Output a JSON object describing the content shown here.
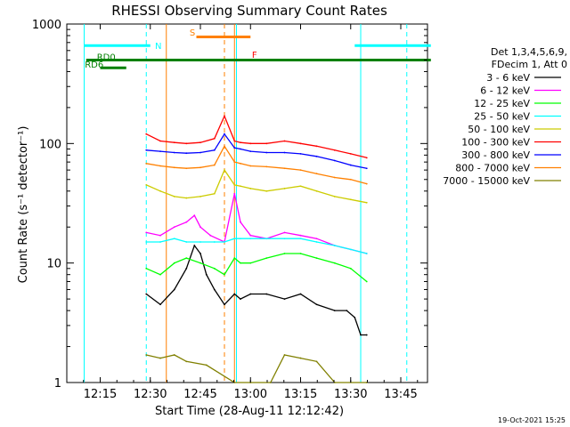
{
  "chart_data": {
    "type": "line",
    "title": "RHESSI Observing Summary Count Rates",
    "xlabel": "Start Time (28-Aug-11 12:12:42)",
    "ylabel": "Count Rate (s⁻¹ detector⁻¹)",
    "y_scale": "log",
    "xlim": [
      "12:10",
      "13:53"
    ],
    "ylim": [
      1,
      1000
    ],
    "x_ticks": [
      "12:15",
      "12:30",
      "12:45",
      "13:00",
      "13:15",
      "13:30",
      "13:45"
    ],
    "y_ticks": [
      "1",
      "10",
      "100",
      "1000"
    ],
    "legend_header": [
      "Det 1,3,4,5,6,9,",
      "FDecim 1, Att 0"
    ],
    "legend_position": "right",
    "timestamp": "19-Oct-2021 15:25",
    "series": [
      {
        "name": "3 - 6 keV",
        "color": "#000000",
        "values": [
          [
            12.48,
            5.5
          ],
          [
            12.55,
            4.5
          ],
          [
            12.62,
            6
          ],
          [
            12.68,
            9
          ],
          [
            12.72,
            14
          ],
          [
            12.75,
            12
          ],
          [
            12.78,
            8
          ],
          [
            12.82,
            6
          ],
          [
            12.87,
            4.5
          ],
          [
            12.92,
            5.5
          ],
          [
            12.95,
            5
          ],
          [
            13.0,
            5.5
          ],
          [
            13.08,
            5.5
          ],
          [
            13.17,
            5
          ],
          [
            13.25,
            5.5
          ],
          [
            13.33,
            4.5
          ],
          [
            13.42,
            4
          ],
          [
            13.48,
            4
          ],
          [
            13.52,
            3.5
          ],
          [
            13.55,
            2.5
          ],
          [
            13.58,
            2.5
          ]
        ]
      },
      {
        "name": "6 - 12 keV",
        "color": "#ff00ff",
        "values": [
          [
            12.48,
            18
          ],
          [
            12.55,
            17
          ],
          [
            12.62,
            20
          ],
          [
            12.68,
            22
          ],
          [
            12.72,
            25
          ],
          [
            12.75,
            20
          ],
          [
            12.8,
            17
          ],
          [
            12.87,
            15
          ],
          [
            12.92,
            38
          ],
          [
            12.95,
            22
          ],
          [
            13.0,
            17
          ],
          [
            13.08,
            16
          ],
          [
            13.17,
            18
          ],
          [
            13.25,
            17
          ],
          [
            13.33,
            16
          ],
          [
            13.42,
            14
          ],
          [
            13.5,
            13
          ],
          [
            13.58,
            12
          ]
        ]
      },
      {
        "name": "12 - 25 keV",
        "color": "#00ff00",
        "values": [
          [
            12.48,
            9
          ],
          [
            12.55,
            8
          ],
          [
            12.62,
            10
          ],
          [
            12.68,
            11
          ],
          [
            12.75,
            10
          ],
          [
            12.82,
            9
          ],
          [
            12.87,
            8
          ],
          [
            12.92,
            11
          ],
          [
            12.95,
            10
          ],
          [
            13.0,
            10
          ],
          [
            13.08,
            11
          ],
          [
            13.17,
            12
          ],
          [
            13.25,
            12
          ],
          [
            13.33,
            11
          ],
          [
            13.42,
            10
          ],
          [
            13.5,
            9
          ],
          [
            13.58,
            7
          ]
        ]
      },
      {
        "name": "25 - 50 keV",
        "color": "#00ffff",
        "values": [
          [
            12.48,
            15
          ],
          [
            12.55,
            15
          ],
          [
            12.62,
            16
          ],
          [
            12.68,
            15
          ],
          [
            12.75,
            15
          ],
          [
            12.82,
            15
          ],
          [
            12.87,
            15
          ],
          [
            12.92,
            16
          ],
          [
            12.95,
            16
          ],
          [
            13.0,
            16
          ],
          [
            13.08,
            16
          ],
          [
            13.17,
            16
          ],
          [
            13.25,
            16
          ],
          [
            13.33,
            15
          ],
          [
            13.42,
            14
          ],
          [
            13.5,
            13
          ],
          [
            13.58,
            12
          ]
        ]
      },
      {
        "name": "50 - 100 keV",
        "color": "#cccc00",
        "values": [
          [
            12.48,
            45
          ],
          [
            12.55,
            40
          ],
          [
            12.62,
            36
          ],
          [
            12.68,
            35
          ],
          [
            12.75,
            36
          ],
          [
            12.82,
            38
          ],
          [
            12.87,
            60
          ],
          [
            12.92,
            45
          ],
          [
            12.95,
            44
          ],
          [
            13.0,
            42
          ],
          [
            13.08,
            40
          ],
          [
            13.17,
            42
          ],
          [
            13.25,
            44
          ],
          [
            13.33,
            40
          ],
          [
            13.42,
            36
          ],
          [
            13.5,
            34
          ],
          [
            13.58,
            32
          ]
        ]
      },
      {
        "name": "100 - 300 keV",
        "color": "#ff0000",
        "values": [
          [
            12.48,
            120
          ],
          [
            12.55,
            105
          ],
          [
            12.62,
            102
          ],
          [
            12.68,
            100
          ],
          [
            12.75,
            102
          ],
          [
            12.82,
            110
          ],
          [
            12.87,
            170
          ],
          [
            12.92,
            105
          ],
          [
            12.95,
            102
          ],
          [
            13.0,
            100
          ],
          [
            13.08,
            100
          ],
          [
            13.17,
            105
          ],
          [
            13.25,
            100
          ],
          [
            13.33,
            95
          ],
          [
            13.42,
            88
          ],
          [
            13.5,
            82
          ],
          [
            13.58,
            76
          ]
        ]
      },
      {
        "name": "300 - 800 keV",
        "color": "#0000ff",
        "values": [
          [
            12.48,
            88
          ],
          [
            12.55,
            86
          ],
          [
            12.62,
            84
          ],
          [
            12.68,
            83
          ],
          [
            12.75,
            84
          ],
          [
            12.82,
            88
          ],
          [
            12.87,
            120
          ],
          [
            12.92,
            92
          ],
          [
            12.95,
            90
          ],
          [
            13.0,
            86
          ],
          [
            13.08,
            84
          ],
          [
            13.17,
            84
          ],
          [
            13.25,
            82
          ],
          [
            13.33,
            78
          ],
          [
            13.42,
            72
          ],
          [
            13.5,
            66
          ],
          [
            13.58,
            62
          ]
        ]
      },
      {
        "name": "800 - 7000 keV",
        "color": "#ff8000",
        "values": [
          [
            12.48,
            68
          ],
          [
            12.55,
            65
          ],
          [
            12.62,
            63
          ],
          [
            12.68,
            62
          ],
          [
            12.75,
            63
          ],
          [
            12.82,
            66
          ],
          [
            12.87,
            95
          ],
          [
            12.92,
            70
          ],
          [
            12.95,
            68
          ],
          [
            13.0,
            65
          ],
          [
            13.08,
            64
          ],
          [
            13.17,
            62
          ],
          [
            13.25,
            60
          ],
          [
            13.33,
            56
          ],
          [
            13.42,
            52
          ],
          [
            13.5,
            50
          ],
          [
            13.58,
            46
          ]
        ]
      },
      {
        "name": "7000 - 15000 keV",
        "color": "#808000",
        "values": [
          [
            12.48,
            1.7
          ],
          [
            12.55,
            1.6
          ],
          [
            12.62,
            1.7
          ],
          [
            12.68,
            1.5
          ],
          [
            12.78,
            1.4
          ],
          [
            12.92,
            1.0
          ],
          [
            13.0,
            1.0
          ],
          [
            13.1,
            1.0
          ],
          [
            13.17,
            1.7
          ],
          [
            13.25,
            1.6
          ],
          [
            13.33,
            1.5
          ],
          [
            13.42,
            1.0
          ],
          [
            13.58,
            1.0
          ]
        ]
      }
    ],
    "annotations": [
      {
        "label": "N",
        "color": "#00ffff",
        "x": 12.54,
        "y": 620
      },
      {
        "label": "S",
        "color": "#ff8000",
        "x": 12.71,
        "y": 800
      },
      {
        "label": "F",
        "color": "#ff0000",
        "x": 13.02,
        "y": 520
      },
      {
        "label": "RD0",
        "color": "#008000",
        "x": 12.28,
        "y": 500
      },
      {
        "label": "RD6",
        "color": "#008000",
        "x": 12.22,
        "y": 430
      }
    ],
    "state_bars": [
      {
        "label": "N",
        "color": "#00ffff",
        "segments": [
          [
            12.17,
            12.5
          ],
          [
            13.52,
            13.9
          ]
        ],
        "y": 660
      },
      {
        "label": "S",
        "color": "#ff8000",
        "segments": [
          [
            12.73,
            13.0
          ]
        ],
        "y": 780
      },
      {
        "label": "RD0",
        "color": "#008000",
        "segments": [
          [
            12.18,
            13.9
          ]
        ],
        "y": 500
      },
      {
        "label": "RD6",
        "color": "#008000",
        "segments": [
          [
            12.25,
            12.38
          ]
        ],
        "y": 430
      }
    ],
    "vertical_lines": [
      {
        "color": "#00ffff",
        "x": 12.17,
        "dashed": false
      },
      {
        "color": "#00ffff",
        "x": 12.48,
        "dashed": true
      },
      {
        "color": "#ff8000",
        "x": 12.58,
        "dashed": false
      },
      {
        "color": "#ff8000",
        "x": 12.87,
        "dashed": true
      },
      {
        "color": "#ff8000",
        "x": 12.92,
        "dashed": false
      },
      {
        "color": "#00ffff",
        "x": 12.93,
        "dashed": false
      },
      {
        "color": "#00ffff",
        "x": 13.55,
        "dashed": false
      },
      {
        "color": "#00ffff",
        "x": 13.78,
        "dashed": true
      }
    ]
  }
}
